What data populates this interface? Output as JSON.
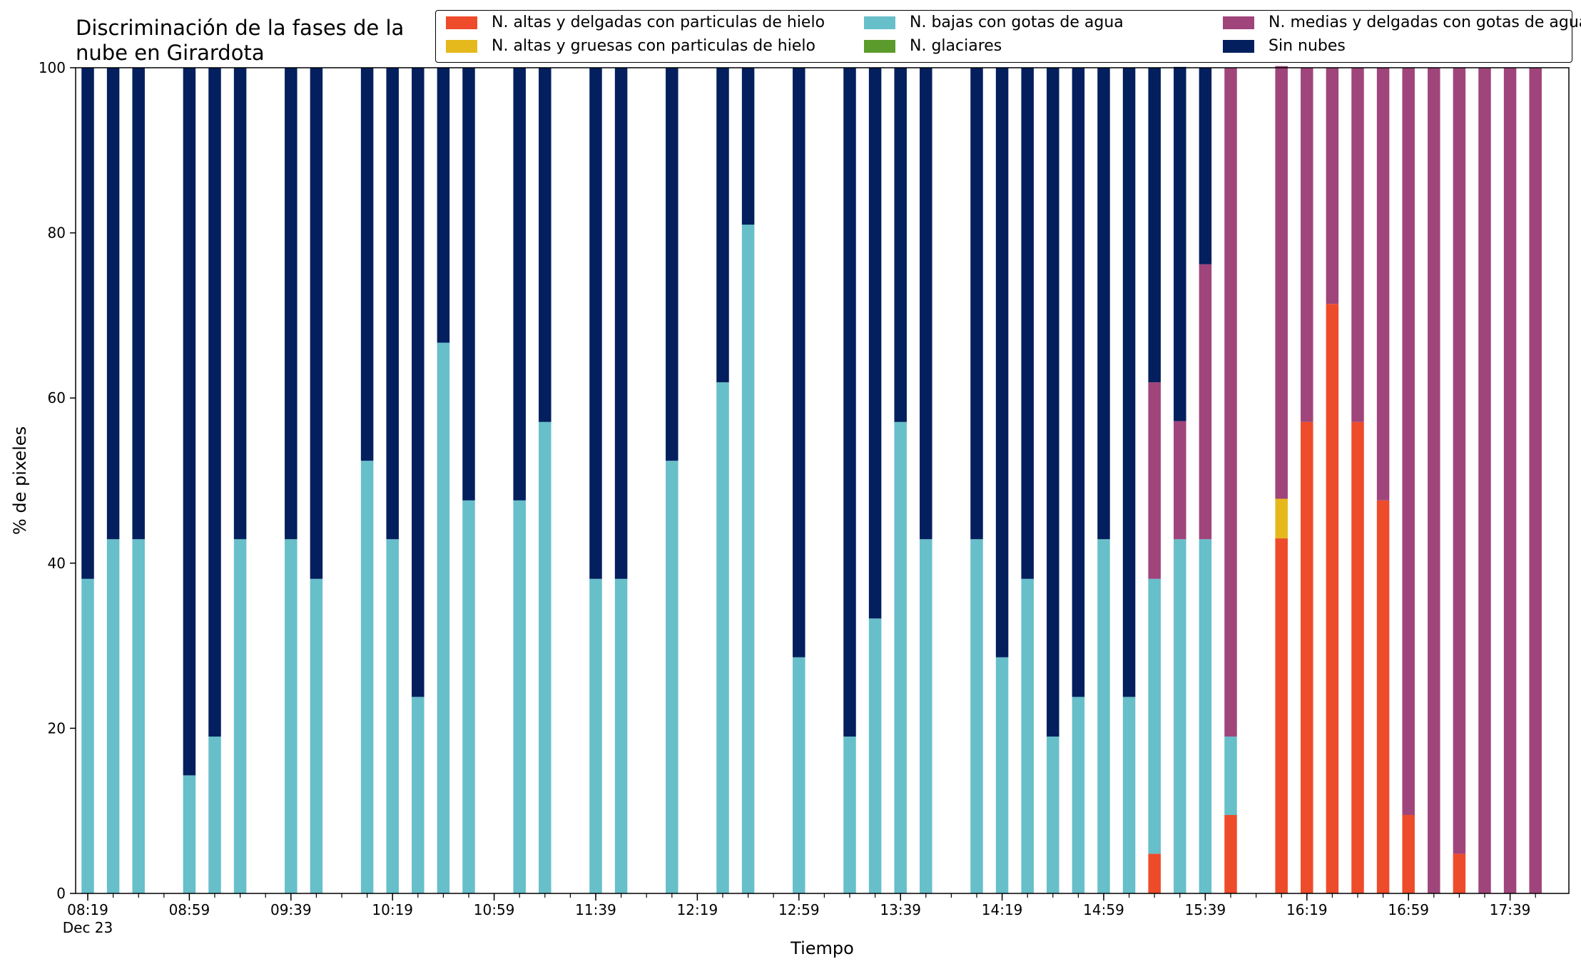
{
  "chart_data": {
    "type": "bar",
    "stacked": true,
    "title": "Discriminación de la fases de la\nnube en Girardota",
    "xlabel": "Tiempo",
    "ylabel": "% de pixeles",
    "ylim": [
      0,
      100
    ],
    "yticks": [
      0,
      20,
      40,
      60,
      80,
      100
    ],
    "grid": false,
    "legend_placement": "top-right",
    "xticks": [
      {
        "slot": 0,
        "label": "08:19",
        "sublabel": "Dec 23"
      },
      {
        "slot": 4,
        "label": "08:59"
      },
      {
        "slot": 8,
        "label": "09:39"
      },
      {
        "slot": 12,
        "label": "10:19"
      },
      {
        "slot": 16,
        "label": "10:59"
      },
      {
        "slot": 20,
        "label": "11:39"
      },
      {
        "slot": 24,
        "label": "12:19"
      },
      {
        "slot": 28,
        "label": "12:59"
      },
      {
        "slot": 32,
        "label": "13:39"
      },
      {
        "slot": 36,
        "label": "14:19"
      },
      {
        "slot": 40,
        "label": "14:59"
      },
      {
        "slot": 44,
        "label": "15:39"
      },
      {
        "slot": 48,
        "label": "16:19"
      },
      {
        "slot": 52,
        "label": "16:59"
      },
      {
        "slot": 56,
        "label": "17:39"
      }
    ],
    "slot_count": 58,
    "bar_slots": [
      0,
      1,
      2,
      4,
      5,
      6,
      8,
      9,
      11,
      12,
      13,
      14,
      15,
      17,
      18,
      20,
      21,
      23,
      25,
      26,
      28,
      30,
      31,
      32,
      33,
      35,
      36,
      37,
      38,
      39,
      40,
      41,
      42,
      43,
      44,
      45,
      47,
      48,
      49,
      50,
      51,
      52,
      53,
      54,
      55,
      56,
      57
    ],
    "series": [
      {
        "name": "N. altas y delgadas con particulas de hielo",
        "color": "#ee4b2b",
        "values": [
          0,
          0,
          0,
          0,
          0,
          0,
          0,
          0,
          0,
          0,
          0,
          0,
          0,
          0,
          0,
          0,
          0,
          0,
          0,
          0,
          0,
          0,
          0,
          0,
          0,
          0,
          0,
          0,
          0,
          0,
          0,
          0,
          4.8,
          0,
          0,
          9.5,
          43,
          57.1,
          71.4,
          57.1,
          47.6,
          9.5,
          0,
          4.8,
          0,
          0,
          0
        ]
      },
      {
        "name": "N. altas y gruesas con particulas de hielo",
        "color": "#e5b91c",
        "values": [
          0,
          0,
          0,
          0,
          0,
          0,
          0,
          0,
          0,
          0,
          0,
          0,
          0,
          0,
          0,
          0,
          0,
          0,
          0,
          0,
          0,
          0,
          0,
          0,
          0,
          0,
          0,
          0,
          0,
          0,
          0,
          0,
          0,
          0,
          0,
          0,
          4.8,
          0,
          0,
          0,
          0,
          0,
          0,
          0,
          0,
          0,
          0
        ]
      },
      {
        "name": "N. bajas con gotas de agua",
        "color": "#67bfca",
        "values": [
          38.1,
          42.9,
          42.9,
          14.3,
          19.0,
          42.9,
          42.9,
          38.1,
          52.4,
          42.9,
          23.8,
          66.7,
          47.6,
          47.6,
          57.1,
          38.1,
          38.1,
          52.4,
          61.9,
          81.0,
          28.6,
          19.0,
          33.3,
          57.1,
          42.9,
          42.9,
          28.6,
          38.1,
          19.0,
          23.8,
          42.9,
          23.8,
          33.3,
          42.9,
          42.9,
          9.5,
          0,
          0,
          0,
          0,
          0,
          0,
          0,
          0,
          0,
          0,
          0
        ]
      },
      {
        "name": "N. glaciares",
        "color": "#5a9b2c",
        "values": [
          0,
          0,
          0,
          0,
          0,
          0,
          0,
          0,
          0,
          0,
          0,
          0,
          0,
          0,
          0,
          0,
          0,
          0,
          0,
          0,
          0,
          0,
          0,
          0,
          0,
          0,
          0,
          0,
          0,
          0,
          0,
          0,
          0,
          0,
          0,
          0,
          0,
          0,
          0,
          0,
          0,
          0,
          0,
          0,
          0,
          0,
          0
        ]
      },
      {
        "name": "N. medias y delgadas con gotas de agua",
        "color": "#a0457b",
        "values": [
          0,
          0,
          0,
          0,
          0,
          0,
          0,
          0,
          0,
          0,
          0,
          0,
          0,
          0,
          0,
          0,
          0,
          0,
          0,
          0,
          0,
          0,
          0,
          0,
          0,
          0,
          0,
          0,
          0,
          0,
          0,
          0,
          23.8,
          14.3,
          33.3,
          81.0,
          52.4,
          42.9,
          28.6,
          42.9,
          52.4,
          90.5,
          100,
          95.2,
          100,
          100,
          100
        ]
      },
      {
        "name": "Sin nubes",
        "color": "#031f5e",
        "values": [
          61.9,
          57.1,
          57.1,
          85.7,
          81.0,
          57.1,
          57.1,
          61.9,
          47.6,
          57.1,
          76.2,
          33.3,
          52.4,
          52.4,
          42.9,
          61.9,
          61.9,
          47.6,
          38.1,
          19.0,
          71.4,
          81.0,
          66.7,
          42.9,
          57.1,
          57.1,
          71.4,
          61.9,
          81.0,
          76.2,
          57.1,
          76.2,
          38.1,
          42.9,
          23.8,
          0,
          0,
          0,
          0,
          0,
          0,
          0,
          0,
          0,
          0,
          0,
          0
        ]
      }
    ]
  }
}
